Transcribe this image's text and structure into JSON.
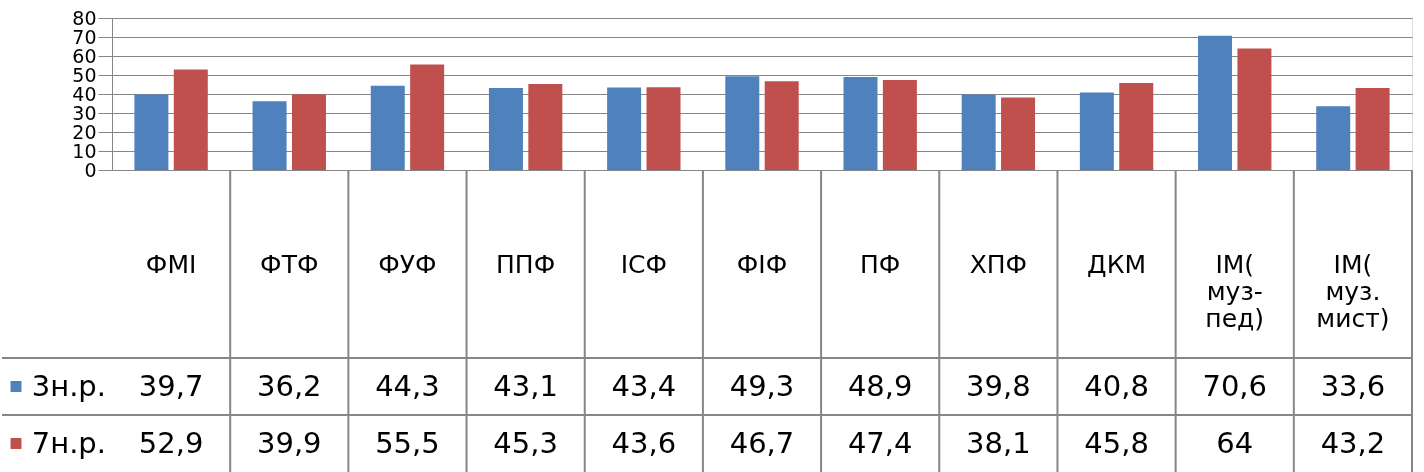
{
  "chart_data": {
    "type": "bar",
    "categories": [
      "ФМІ",
      "ФТФ",
      "ФУФ",
      "ППФ",
      "ІСФ",
      "ФІФ",
      "ПФ",
      "ХПФ",
      "ДКМ",
      "ІМ(муз-пед)",
      "ІМ(муз.мист)"
    ],
    "series": [
      {
        "name": "3н.р.",
        "color": "#4f81bd",
        "values": [
          39.7,
          36.2,
          44.3,
          43.1,
          43.4,
          49.3,
          48.9,
          39.8,
          40.8,
          70.6,
          33.6
        ],
        "value_labels": [
          "39,7",
          "36,2",
          "44,3",
          "43,1",
          "43,4",
          "49,3",
          "48,9",
          "39,8",
          "40,8",
          "70,6",
          "33,6"
        ]
      },
      {
        "name": "7н.р.",
        "color": "#c0504d",
        "values": [
          52.9,
          39.9,
          55.5,
          45.3,
          43.6,
          46.7,
          47.4,
          38.1,
          45.8,
          64,
          43.2
        ],
        "value_labels": [
          "52,9",
          "39,9",
          "55,5",
          "45,3",
          "43,6",
          "46,7",
          "47,4",
          "38,1",
          "45,8",
          "64",
          "43,2"
        ]
      }
    ],
    "ylim": [
      0,
      80
    ],
    "yticks": [
      0,
      10,
      20,
      30,
      40,
      50,
      60,
      70,
      80
    ],
    "grid": "y",
    "legend": "left"
  }
}
